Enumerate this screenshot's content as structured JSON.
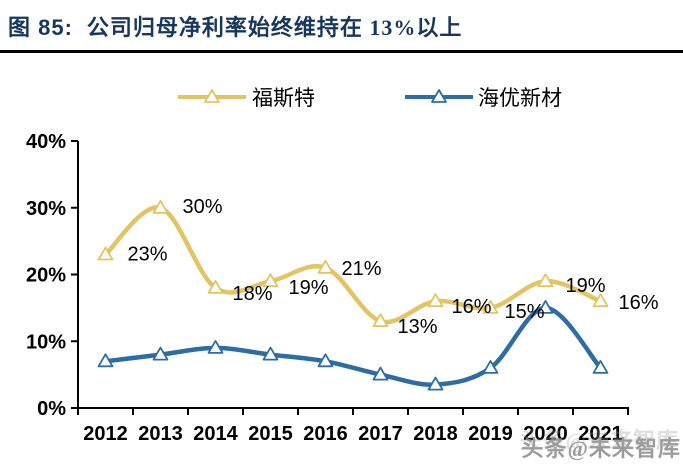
{
  "header": {
    "figure_label": "图 85:",
    "title": "公司归母净利率始终维持在 13%以上"
  },
  "watermark": {
    "text": "头条@未来智库"
  },
  "colors": {
    "title_navy": "#17365D",
    "foster_yellow": "#E3C465",
    "haiyou_blue": "#2E6DA4",
    "axis_black": "#000000",
    "label_black": "#000000",
    "watermark_grey": "#8F8F8F"
  },
  "legend": {
    "position": "top",
    "entries": [
      {
        "label": "福斯特",
        "color_key": "foster_yellow",
        "marker": "triangle"
      },
      {
        "label": "海优新材",
        "color_key": "haiyou_blue",
        "marker": "triangle"
      }
    ]
  },
  "chart_data": {
    "type": "line",
    "smooth": true,
    "grid": false,
    "title": "",
    "xlabel": "",
    "ylabel": "",
    "categories": [
      "2012",
      "2013",
      "2014",
      "2015",
      "2016",
      "2017",
      "2018",
      "2019",
      "2020",
      "2021"
    ],
    "series": [
      {
        "name": "福斯特",
        "color_key": "foster_yellow",
        "marker": "triangle",
        "values": [
          23,
          30,
          18,
          19,
          21,
          13,
          16,
          15,
          19,
          16
        ],
        "data_labels": [
          "23%",
          "30%",
          "18%",
          "19%",
          "21%",
          "13%",
          "16%",
          "15%",
          "19%",
          "16%"
        ]
      },
      {
        "name": "海优新材",
        "color_key": "haiyou_blue",
        "marker": "triangle",
        "values": [
          7,
          8,
          9,
          8,
          7,
          5,
          3.5,
          6,
          15,
          6
        ],
        "data_labels": null
      }
    ],
    "ylim": [
      0,
      40
    ],
    "ytick_values": [
      0,
      10,
      20,
      30,
      40
    ],
    "ytick_labels": [
      "0%",
      "10%",
      "20%",
      "30%",
      "40%"
    ],
    "legend_position": "top"
  }
}
